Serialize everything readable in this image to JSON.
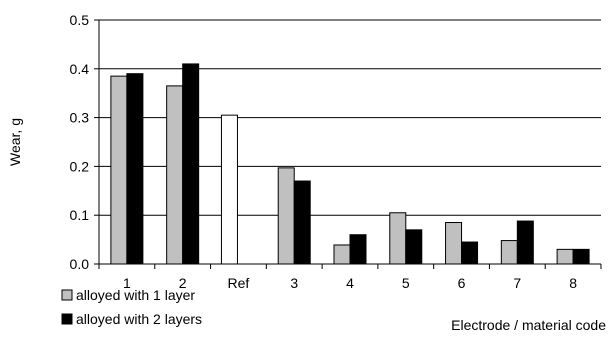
{
  "chart_data": {
    "type": "bar",
    "categories": [
      "1",
      "2",
      "Ref",
      "3",
      "4",
      "5",
      "6",
      "7",
      "8"
    ],
    "series": [
      {
        "name": "alloyed with 1 layer",
        "color": "#c0c0c0",
        "values": [
          0.385,
          0.365,
          null,
          0.197,
          0.039,
          0.105,
          0.085,
          0.048,
          0.03
        ]
      },
      {
        "name": "alloyed with 2 layers",
        "color": "#000000",
        "values": [
          0.39,
          0.41,
          null,
          0.17,
          0.06,
          0.07,
          0.045,
          0.088,
          0.03
        ]
      }
    ],
    "reference": {
      "category": "Ref",
      "value": 0.305,
      "color": "#ffffff"
    },
    "xlabel": "Electrode / material code",
    "ylabel": "Wear, g",
    "ylim": [
      0,
      0.5
    ],
    "yticks": [
      "0.0",
      "0.1",
      "0.2",
      "0.3",
      "0.4",
      "0.5"
    ],
    "grid": true,
    "legend_position": "bottom-left"
  }
}
